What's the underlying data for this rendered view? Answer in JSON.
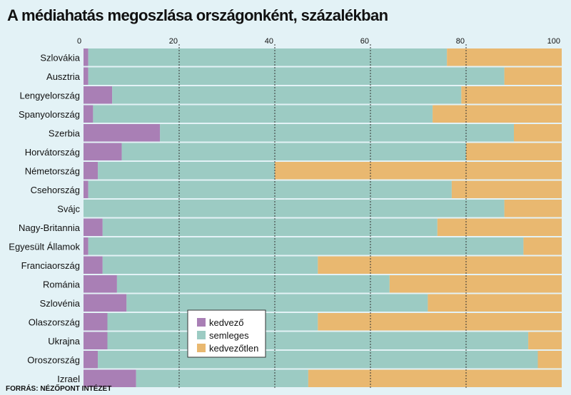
{
  "title": "A médiahatás megoszlása országonként, százalékban",
  "source": "FORRÁS: NÉZŐPONT INTÉZET",
  "chart_data": {
    "type": "bar",
    "orientation": "horizontal",
    "stacked": true,
    "title": "A médiahatás megoszlása országonként, százalékban",
    "xlim": [
      0,
      100
    ],
    "xticks": [
      0,
      20,
      40,
      60,
      80,
      100
    ],
    "grid": true,
    "legend_position": "bottom-center",
    "categories": [
      "Szlovákia",
      "Ausztria",
      "Lengyelország",
      "Spanyolország",
      "Szerbia",
      "Horvátország",
      "Németország",
      "Csehország",
      "Svájc",
      "Nagy-Britannia",
      "Egyesült Államok",
      "Franciaország",
      "Románia",
      "Szlovénia",
      "Olaszország",
      "Ukrajna",
      "Oroszország",
      "Izrael"
    ],
    "series": [
      {
        "name": "kedvező",
        "color": "#a97fb5",
        "values": [
          1,
          1,
          6,
          2,
          16,
          8,
          3,
          1,
          0,
          4,
          1,
          4,
          7,
          9,
          5,
          5,
          3,
          11
        ]
      },
      {
        "name": "semleges",
        "color": "#9ccbc3",
        "values": [
          75,
          87,
          73,
          71,
          74,
          72,
          37,
          76,
          88,
          70,
          91,
          45,
          57,
          63,
          44,
          88,
          92,
          36
        ]
      },
      {
        "name": "kedvezőtlen",
        "color": "#e9b870",
        "values": [
          24,
          12,
          21,
          27,
          10,
          20,
          60,
          23,
          12,
          26,
          8,
          51,
          36,
          28,
          51,
          7,
          5,
          53
        ]
      }
    ]
  }
}
